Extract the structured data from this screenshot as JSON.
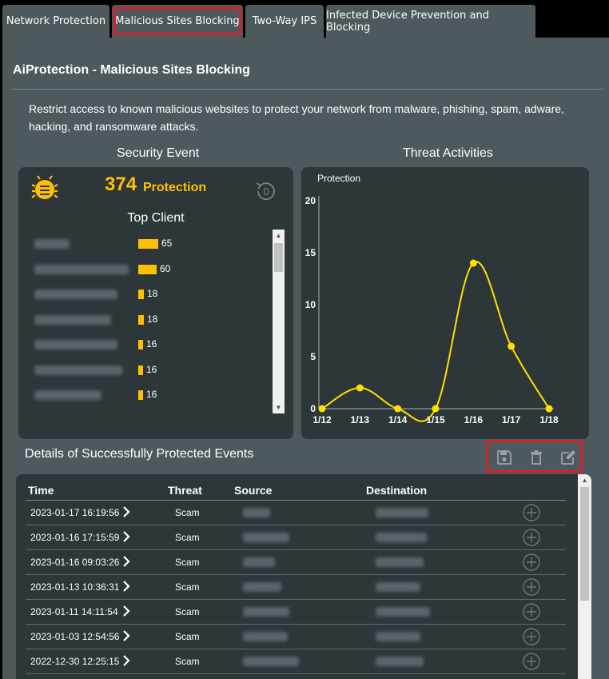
{
  "tabs": [
    {
      "label": "Network Protection"
    },
    {
      "label": "Malicious Sites Blocking"
    },
    {
      "label": "Two-Way IPS"
    },
    {
      "label": "Infected Device Prevention and Blocking"
    }
  ],
  "page_title": "AiProtection - Malicious Sites Blocking",
  "intro": "Restrict access to known malicious websites to protect your network from malware, phishing, spam, adware, hacking, and ransomware attacks.",
  "security_event": {
    "heading": "Security Event",
    "count": "374",
    "count_label": "Protection",
    "reset_count": "0",
    "top_client_heading": "Top Client",
    "clients": [
      {
        "value": "65",
        "fraction": 1.0
      },
      {
        "value": "60",
        "fraction": 0.923
      },
      {
        "value": "18",
        "fraction": 0.277
      },
      {
        "value": "18",
        "fraction": 0.277
      },
      {
        "value": "16",
        "fraction": 0.246
      },
      {
        "value": "16",
        "fraction": 0.246
      },
      {
        "value": "16",
        "fraction": 0.246
      }
    ]
  },
  "threat_activities": {
    "heading": "Threat Activities"
  },
  "chart_data": {
    "type": "line",
    "title": "",
    "series": [
      {
        "name": "Protection",
        "values": [
          0,
          2,
          0,
          0,
          14,
          6,
          0
        ]
      }
    ],
    "categories": [
      "1/12",
      "1/13",
      "1/14",
      "1/15",
      "1/16",
      "1/17",
      "1/18"
    ],
    "y_ticks": [
      "0",
      "5",
      "10",
      "15",
      "20"
    ],
    "ylim": [
      0,
      20
    ],
    "grid": false,
    "line_color": "#ffe100"
  },
  "details": {
    "heading": "Details of Successfully Protected Events",
    "columns": [
      "Time",
      "Threat",
      "Source",
      "Destination"
    ],
    "rows": [
      {
        "time": "2023-01-17 16:19:56",
        "threat": "Scam"
      },
      {
        "time": "2023-01-16 17:15:59",
        "threat": "Scam"
      },
      {
        "time": "2023-01-16 09:03:26",
        "threat": "Scam"
      },
      {
        "time": "2023-01-13 10:36:31",
        "threat": "Scam"
      },
      {
        "time": "2023-01-11 14:11:54",
        "threat": "Scam"
      },
      {
        "time": "2023-01-03 12:54:56",
        "threat": "Scam"
      },
      {
        "time": "2022-12-30 12:25:15",
        "threat": "Scam"
      }
    ],
    "actions": [
      "save-icon",
      "trash-icon",
      "edit-icon"
    ]
  },
  "colors": {
    "accent": "#ffc000",
    "highlight": "#d2232a",
    "panel": "#4d595d",
    "card": "#2d3639"
  }
}
